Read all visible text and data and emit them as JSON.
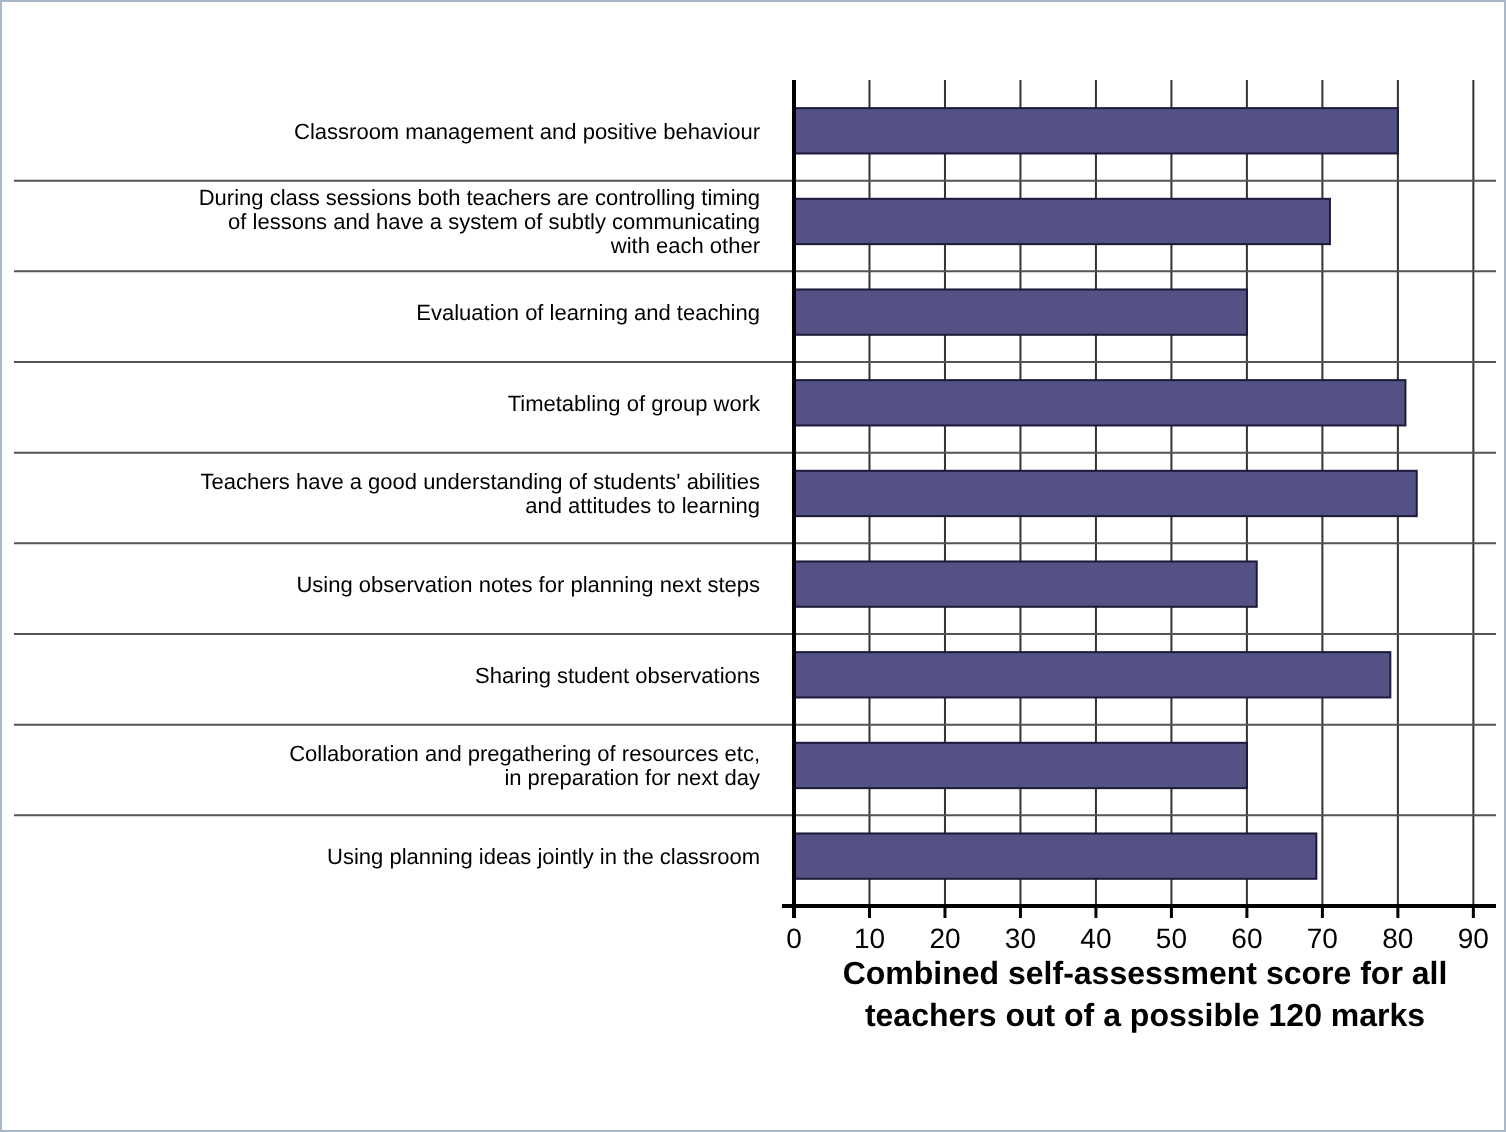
{
  "chart_data": {
    "type": "bar",
    "orientation": "horizontal",
    "categories": [
      "Classroom management and positive behaviour",
      "During class sessions both teachers are controlling timing\nof lessons and have a system of subtly communicating\nwith each other",
      "Evaluation of learning and teaching",
      "Timetabling of group work",
      "Teachers have a good understanding of students' abilities\nand attitudes to learning",
      "Using observation notes for planning next steps",
      "Sharing student observations",
      "Collaboration and pregathering of resources etc,\nin preparation for next day",
      "Using planning ideas jointly in the classroom"
    ],
    "values": [
      80,
      71,
      60,
      81,
      82.5,
      61.3,
      79,
      60,
      69.2
    ],
    "color": "#545185",
    "xlim": [
      0,
      93
    ],
    "xticks": [
      0,
      10,
      20,
      30,
      40,
      50,
      60,
      70,
      80,
      90
    ],
    "xlabel": "Combined self-assessment score for all\nteachers out of a possible 120 marks",
    "grid": "x"
  }
}
